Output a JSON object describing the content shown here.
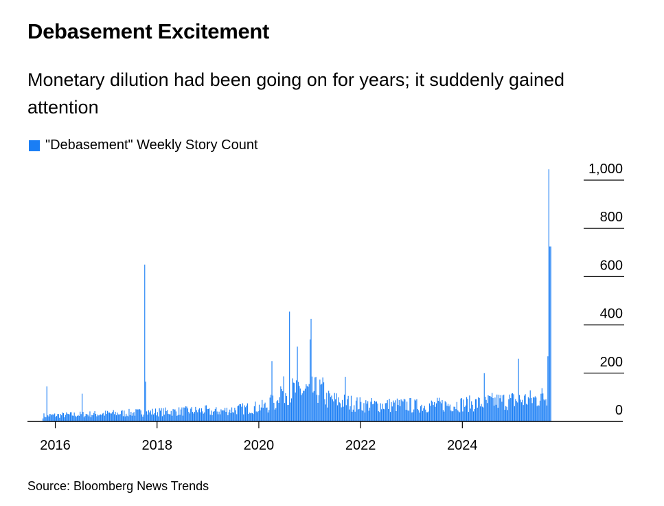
{
  "title": "Debasement Excitement",
  "subtitle": "Monetary dilution had been going on for years; it suddenly gained attention",
  "source": "Source: Bloomberg News Trends",
  "colors": {
    "bar": "#1a7ef5",
    "axis": "#000000"
  },
  "chart_data": {
    "type": "bar",
    "series": [
      {
        "name": "\"Debasement\" Weekly Story Count"
      }
    ],
    "x_ticks": [
      "2016",
      "2018",
      "2020",
      "2022",
      "2024"
    ],
    "y_ticks": [
      "0",
      "200",
      "400",
      "600",
      "800",
      "1,000"
    ],
    "ylim": [
      0,
      1000
    ],
    "x_range": [
      "2015-10",
      "2025-10"
    ],
    "grid": "y-tick marks on right only",
    "legend_position": "top-left",
    "baseline_weekly_range": [
      10,
      80
    ],
    "spikes": [
      {
        "date": "2015-11",
        "value": 145
      },
      {
        "date": "2016-07",
        "value": 115
      },
      {
        "date": "2017-10",
        "value": 650
      },
      {
        "date": "2017-10",
        "value": 165
      },
      {
        "date": "2020-04",
        "value": 250
      },
      {
        "date": "2020-08",
        "value": 455
      },
      {
        "date": "2020-10",
        "value": 310
      },
      {
        "date": "2021-01",
        "value": 425
      },
      {
        "date": "2021-01",
        "value": 340
      },
      {
        "date": "2021-09",
        "value": 185
      },
      {
        "date": "2024-06",
        "value": 200
      },
      {
        "date": "2025-02",
        "value": 260
      },
      {
        "date": "2025-09",
        "value": 270
      },
      {
        "date": "2025-10",
        "value": 1045
      },
      {
        "date": "2025-10",
        "value": 725
      }
    ]
  }
}
